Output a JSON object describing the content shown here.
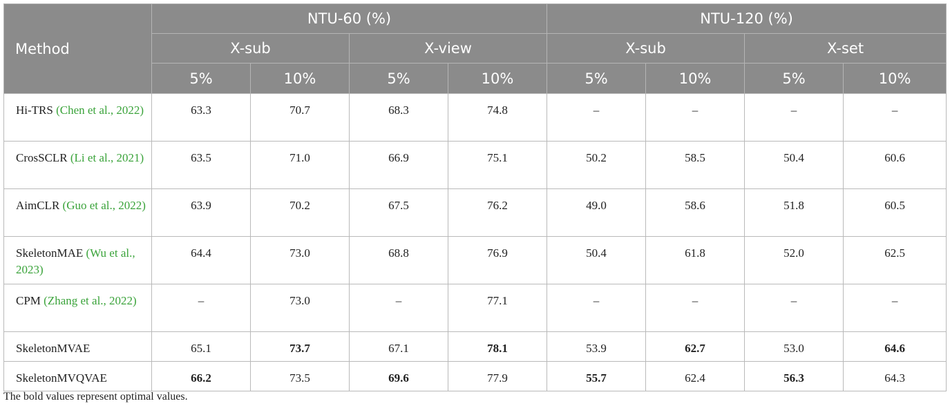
{
  "header": {
    "method": "Method",
    "groups": [
      "NTU-60 (%)",
      "NTU-120 (%)"
    ],
    "splits": [
      "X-sub",
      "X-view",
      "X-sub",
      "X-set"
    ],
    "ratios": [
      "5%",
      "10%",
      "5%",
      "10%",
      "5%",
      "10%",
      "5%",
      "10%"
    ]
  },
  "rows": [
    {
      "name": "Hi-TRS",
      "cite": "(Chen et al., 2022)",
      "values": [
        "63.3",
        "70.7",
        "68.3",
        "74.8",
        "–",
        "–",
        "–",
        "–"
      ],
      "bold": []
    },
    {
      "name": "CrosSCLR",
      "cite": "(Li et al., 2021)",
      "values": [
        "63.5",
        "71.0",
        "66.9",
        "75.1",
        "50.2",
        "58.5",
        "50.4",
        "60.6"
      ],
      "bold": []
    },
    {
      "name": "AimCLR",
      "cite": "(Guo et al., 2022)",
      "values": [
        "63.9",
        "70.2",
        "67.5",
        "76.2",
        "49.0",
        "58.6",
        "51.8",
        "60.5"
      ],
      "bold": []
    },
    {
      "name": "SkeletonMAE",
      "cite": "(Wu et al., 2023)",
      "values": [
        "64.4",
        "73.0",
        "68.8",
        "76.9",
        "50.4",
        "61.8",
        "52.0",
        "62.5"
      ],
      "bold": []
    },
    {
      "name": "CPM",
      "cite": "(Zhang et al., 2022)",
      "values": [
        "–",
        "73.0",
        "–",
        "77.1",
        "–",
        "–",
        "–",
        "–"
      ],
      "bold": []
    },
    {
      "name": "SkeletonMVAE",
      "cite": "",
      "values": [
        "65.1",
        "73.7",
        "67.1",
        "78.1",
        "53.9",
        "62.7",
        "53.0",
        "64.6"
      ],
      "bold": [
        1,
        3,
        5,
        7
      ]
    },
    {
      "name": "SkeletonMVQVAE",
      "cite": "",
      "values": [
        "66.2",
        "73.5",
        "69.6",
        "77.9",
        "55.7",
        "62.4",
        "56.3",
        "64.3"
      ],
      "bold": [
        0,
        2,
        4,
        6
      ]
    }
  ],
  "footnote": "The bold values represent optimal values."
}
